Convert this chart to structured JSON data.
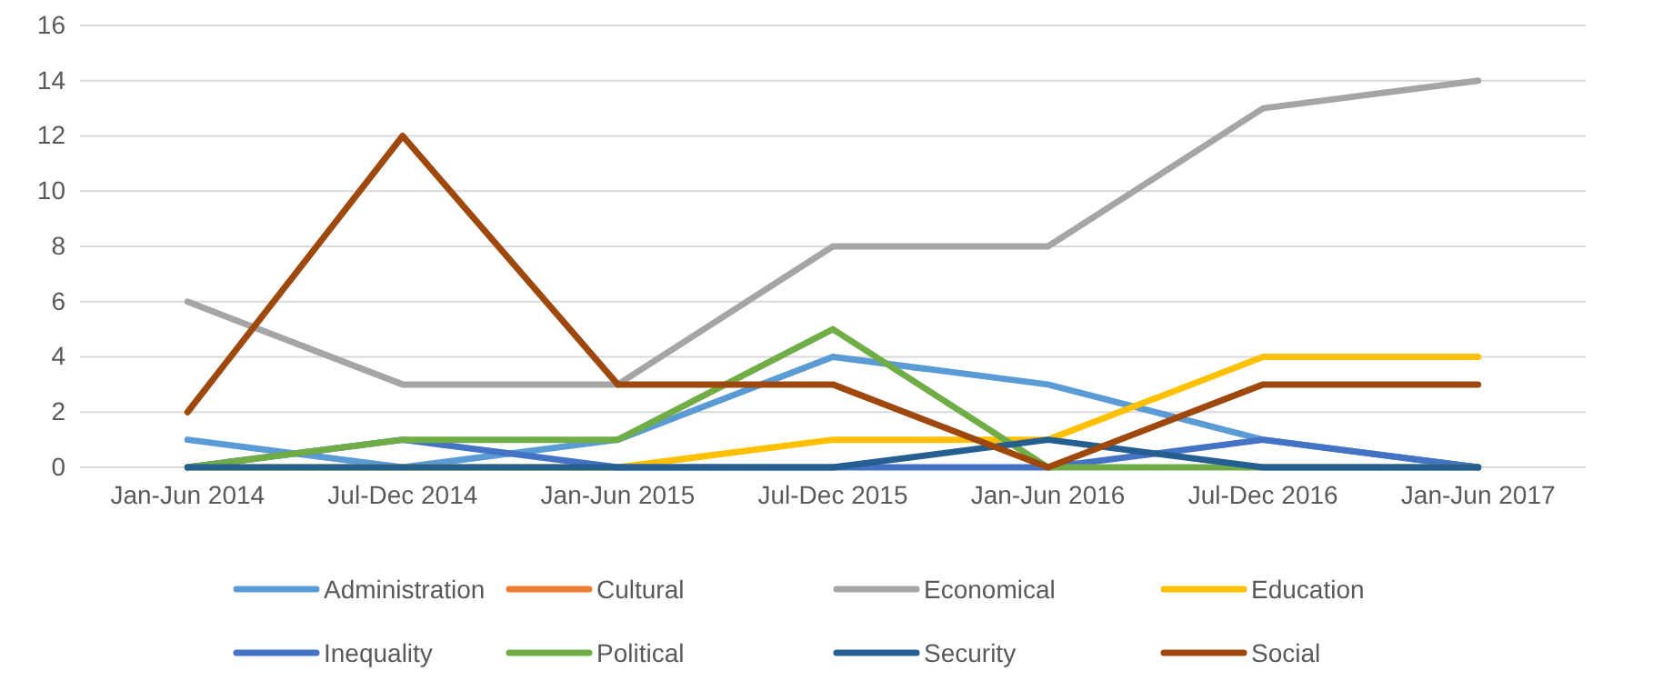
{
  "chart_data": {
    "type": "line",
    "categories": [
      "Jan-Jun 2014",
      "Jul-Dec 2014",
      "Jan-Jun 2015",
      "Jul-Dec 2015",
      "Jan-Jun 2016",
      "Jul-Dec 2016",
      "Jan-Jun 2017"
    ],
    "series": [
      {
        "name": "Administration",
        "color": "#5b9bd5",
        "values": [
          1,
          0,
          1,
          4,
          3,
          1,
          0
        ]
      },
      {
        "name": "Cultural",
        "color": "#ed7d31",
        "values": [
          null,
          null,
          null,
          null,
          null,
          null,
          null
        ]
      },
      {
        "name": "Economical",
        "color": "#a5a5a5",
        "values": [
          6,
          3,
          3,
          8,
          8,
          13,
          14
        ]
      },
      {
        "name": "Education",
        "color": "#ffc000",
        "values": [
          0,
          0,
          0,
          1,
          1,
          4,
          4
        ]
      },
      {
        "name": "Inequality",
        "color": "#4472c4",
        "values": [
          0,
          1,
          0,
          0,
          0,
          1,
          0
        ]
      },
      {
        "name": "Political",
        "color": "#70ad47",
        "values": [
          0,
          1,
          1,
          5,
          0,
          0,
          0
        ]
      },
      {
        "name": "Security",
        "color": "#255e91",
        "values": [
          0,
          0,
          0,
          0,
          1,
          0,
          0
        ]
      },
      {
        "name": "Social",
        "color": "#9e480e",
        "values": [
          2,
          12,
          3,
          3,
          0,
          3,
          3
        ]
      }
    ],
    "ylim": [
      0,
      16
    ],
    "yticks": [
      0,
      2,
      4,
      6,
      8,
      10,
      12,
      14,
      16
    ],
    "grid": "y",
    "legend": "bottom",
    "marker": "none",
    "line_style": "solid"
  }
}
